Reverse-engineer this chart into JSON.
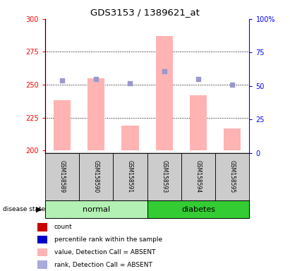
{
  "title": "GDS3153 / 1389621_at",
  "samples": [
    "GSM158589",
    "GSM158590",
    "GSM158591",
    "GSM158593",
    "GSM158594",
    "GSM158595"
  ],
  "bar_values": [
    238,
    255,
    219,
    287,
    242,
    217
  ],
  "dot_values": [
    54,
    55,
    52,
    61,
    55,
    51
  ],
  "ylim_left": [
    198,
    300
  ],
  "ylim_right": [
    0,
    100
  ],
  "yticks_left": [
    200,
    225,
    250,
    275,
    300
  ],
  "yticks_right": [
    0,
    25,
    50,
    75,
    100
  ],
  "bar_color": "#ffb3b3",
  "dot_color": "#9999cc",
  "normal_color": "#b3f0b3",
  "diabetes_color": "#33cc33",
  "label_bg_color": "#cccccc",
  "ybase": 200,
  "legend_items": [
    {
      "color": "#cc0000",
      "label": "count"
    },
    {
      "color": "#0000cc",
      "label": "percentile rank within the sample"
    },
    {
      "color": "#ffb3b3",
      "label": "value, Detection Call = ABSENT"
    },
    {
      "color": "#aaaadd",
      "label": "rank, Detection Call = ABSENT"
    }
  ],
  "groups_info": [
    {
      "label": "normal",
      "start": 0,
      "end": 2,
      "color": "#b3f0b3"
    },
    {
      "label": "diabetes",
      "start": 3,
      "end": 5,
      "color": "#33cc33"
    }
  ]
}
